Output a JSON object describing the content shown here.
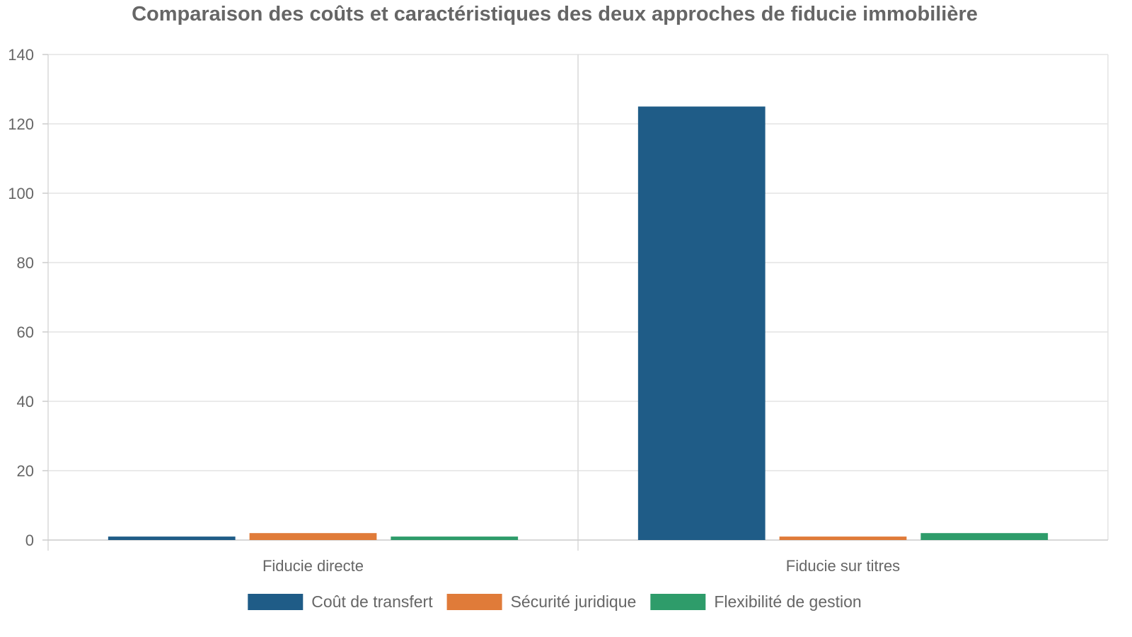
{
  "chart_data": {
    "type": "bar",
    "title": "Comparaison des coûts et caractéristiques des deux approches de fiducie immobilière",
    "xlabel": "",
    "ylabel": "",
    "categories": [
      "Fiducie directe",
      "Fiducie sur titres"
    ],
    "series": [
      {
        "name": "Coût de transfert",
        "color": "#1f5c87",
        "values": [
          1,
          125
        ]
      },
      {
        "name": "Sécurité juridique",
        "color": "#e07b39",
        "values": [
          2,
          1
        ]
      },
      {
        "name": "Flexibilité de gestion",
        "color": "#2e9c6a",
        "values": [
          1,
          2
        ]
      }
    ],
    "ylim": [
      0,
      140
    ],
    "yticks": [
      0,
      20,
      40,
      60,
      80,
      100,
      120,
      140
    ],
    "grid": true,
    "legend_position": "bottom"
  }
}
